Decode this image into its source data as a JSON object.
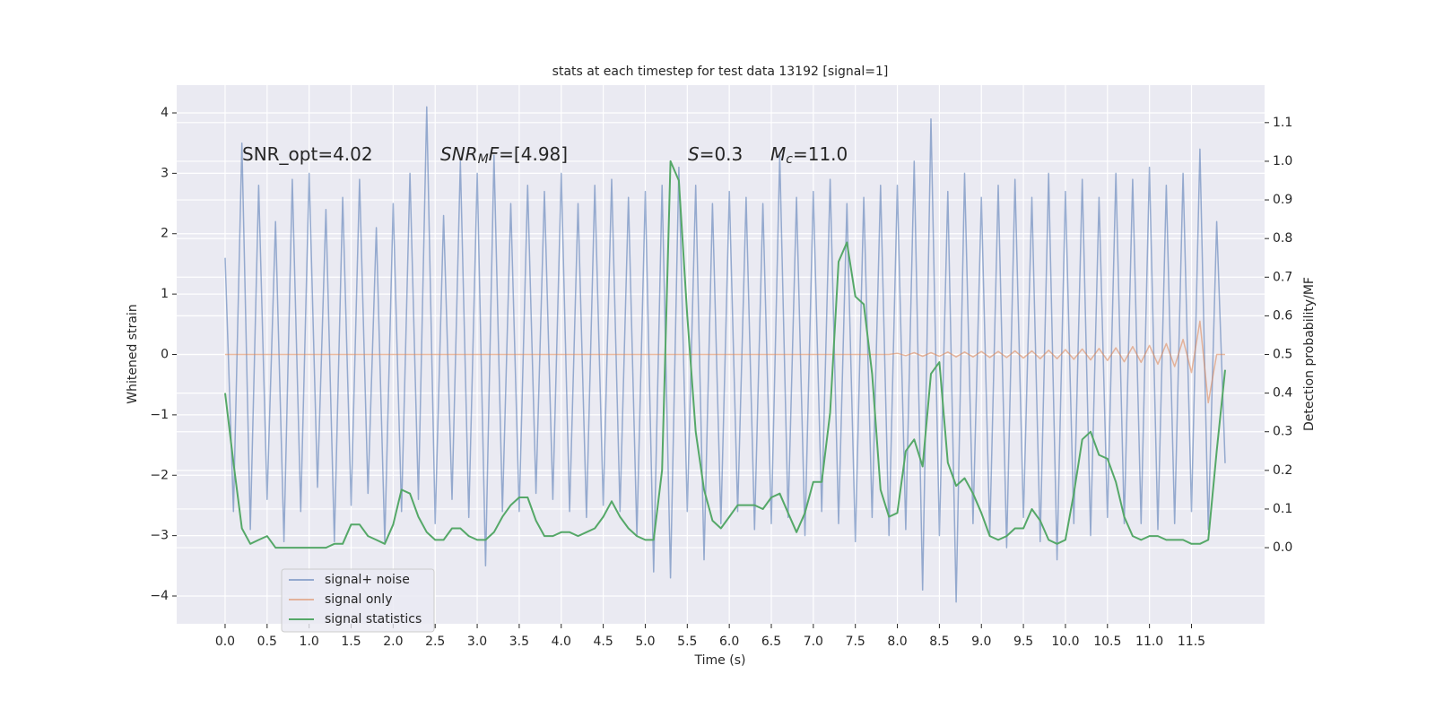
{
  "chart_data": {
    "type": "line",
    "title": "stats at each timestep for test data 13192 [signal=1]",
    "xlabel": "Time (s)",
    "ylabel": "Whitened strain",
    "y2label": "Detection probability/MF",
    "grid": true,
    "legend": "lower left",
    "xlim": [
      -0.576,
      12.37
    ],
    "ylim": [
      -4.46,
      4.46
    ],
    "y2lim": [
      -0.197,
      1.197
    ],
    "xticks": [
      {
        "value": 0,
        "label": "0.0"
      },
      0.5,
      {
        "value": 1,
        "label": "1.0"
      },
      1.5,
      {
        "value": 2,
        "label": "2.0"
      },
      2.5,
      {
        "value": 3,
        "label": "3.0"
      },
      3.5,
      {
        "value": 4,
        "label": "4.0"
      },
      4.5,
      {
        "value": 5,
        "label": "5.0"
      },
      5.5,
      {
        "value": 6,
        "label": "6.0"
      },
      6.5,
      {
        "value": 7,
        "label": "7.0"
      },
      7.5,
      {
        "value": 8,
        "label": "8.0"
      },
      8.5,
      {
        "value": 9,
        "label": "9.0"
      },
      9.5,
      {
        "value": 10,
        "label": "10.0"
      },
      10.5,
      {
        "value": 11,
        "label": "11.0"
      },
      11.5
    ],
    "yticks": [
      {
        "value": -4,
        "label": "−4"
      },
      {
        "value": -3,
        "label": "−3"
      },
      {
        "value": -2,
        "label": "−2"
      },
      {
        "value": -1,
        "label": "−1"
      },
      0,
      1,
      2,
      3,
      4
    ],
    "y2ticks": [
      {
        "value": 0,
        "label": "0.0"
      },
      0.1,
      0.2,
      0.3,
      0.4,
      0.5,
      0.6,
      0.7,
      0.8,
      0.9,
      {
        "value": 1,
        "label": "1.0"
      },
      1.1
    ],
    "annotations": [
      [
        {
          "text": "SNR_opt=4.02",
          "style": "normal"
        }
      ],
      [
        {
          "text": "SNR",
          "style": "italic"
        },
        {
          "text": "M",
          "style": "sub"
        },
        {
          "text": "F",
          "style": "italic"
        },
        {
          "text": "=[4.98]",
          "style": "normal"
        }
      ],
      [
        {
          "text": "S",
          "style": "italic"
        },
        {
          "text": "=0.3",
          "style": "normal"
        }
      ],
      [
        {
          "text": "M",
          "style": "italic"
        },
        {
          "text": "c",
          "style": "sub"
        },
        {
          "text": "=11.0",
          "style": "normal"
        }
      ]
    ],
    "x": [
      0.0,
      0.1,
      0.2,
      0.3,
      0.4,
      0.5,
      0.6,
      0.7,
      0.8,
      0.9,
      1.0,
      1.1,
      1.2,
      1.3,
      1.4,
      1.5,
      1.6,
      1.7,
      1.8,
      1.9,
      2.0,
      2.1,
      2.2,
      2.3,
      2.4,
      2.5,
      2.6,
      2.7,
      2.8,
      2.9,
      3.0,
      3.1,
      3.2,
      3.3,
      3.4,
      3.5,
      3.6,
      3.7,
      3.8,
      3.9,
      4.0,
      4.1,
      4.2,
      4.3,
      4.4,
      4.5,
      4.6,
      4.7,
      4.8,
      4.9,
      5.0,
      5.1,
      5.2,
      5.3,
      5.4,
      5.5,
      5.6,
      5.7,
      5.8,
      5.9,
      6.0,
      6.1,
      6.2,
      6.3,
      6.4,
      6.5,
      6.6,
      6.7,
      6.8,
      6.9,
      7.0,
      7.1,
      7.2,
      7.3,
      7.4,
      7.5,
      7.6,
      7.7,
      7.8,
      7.9,
      8.0,
      8.1,
      8.2,
      8.3,
      8.4,
      8.5,
      8.6,
      8.7,
      8.8,
      8.9,
      9.0,
      9.1,
      9.2,
      9.3,
      9.4,
      9.5,
      9.6,
      9.7,
      9.8,
      9.9,
      10.0,
      10.1,
      10.2,
      10.3,
      10.4,
      10.5,
      10.6,
      10.7,
      10.8,
      10.9,
      11.0,
      11.1,
      11.2,
      11.3,
      11.4,
      11.5,
      11.6,
      11.7,
      11.8,
      11.9
    ],
    "series": [
      {
        "name": "signal+ noise",
        "color": "#4c72b0",
        "values": [
          1.6,
          -2.6,
          3.5,
          -2.9,
          2.8,
          -2.4,
          2.2,
          -3.1,
          2.9,
          -2.6,
          3.0,
          -2.2,
          2.4,
          -3.1,
          2.6,
          -2.5,
          2.9,
          -2.3,
          2.1,
          -3.1,
          2.5,
          -2.6,
          3.0,
          -2.4,
          4.1,
          -2.8,
          2.3,
          -2.4,
          3.2,
          -2.7,
          3.0,
          -3.5,
          3.3,
          -2.6,
          2.5,
          -2.6,
          2.8,
          -2.3,
          2.7,
          -2.4,
          3.0,
          -2.6,
          2.5,
          -2.7,
          2.8,
          -2.5,
          2.9,
          -2.6,
          2.6,
          -3.0,
          2.7,
          -3.6,
          2.8,
          -3.7,
          3.1,
          -2.6,
          2.8,
          -3.4,
          2.5,
          -2.8,
          2.7,
          -2.6,
          2.6,
          -2.9,
          2.5,
          -2.8,
          3.3,
          -2.7,
          2.6,
          -3.0,
          2.7,
          -2.6,
          2.9,
          -2.8,
          2.5,
          -3.1,
          2.6,
          -2.7,
          2.8,
          -3.0,
          2.8,
          -2.9,
          3.2,
          -3.9,
          3.9,
          -3.0,
          2.7,
          -4.1,
          3.0,
          -2.8,
          2.6,
          -3.0,
          2.8,
          -3.2,
          2.9,
          -2.7,
          2.6,
          -3.1,
          3.0,
          -3.4,
          2.7,
          -2.8,
          2.9,
          -3.0,
          2.6,
          -2.7,
          3.0,
          -2.8,
          2.9,
          -2.8,
          3.1,
          -2.9,
          2.8,
          -2.8,
          3.0,
          -2.6,
          3.4,
          -2.9,
          2.2,
          -1.8
        ]
      },
      {
        "name": "signal only",
        "color": "#dd8452",
        "values": [
          0,
          0,
          0,
          0,
          0,
          0,
          0,
          0,
          0,
          0,
          0,
          0,
          0,
          0,
          0,
          0,
          0,
          0,
          0,
          0,
          0,
          0,
          0,
          0,
          0,
          0,
          0,
          0,
          0,
          0,
          0,
          0,
          0,
          0,
          0,
          0,
          0,
          0,
          0,
          0,
          0,
          0,
          0,
          0,
          0,
          0,
          0,
          0,
          0,
          0,
          0,
          0,
          0,
          0,
          0,
          0,
          0,
          0,
          0,
          0,
          0,
          0,
          0,
          0,
          0,
          0,
          0,
          0,
          0,
          0,
          0,
          0,
          0,
          0,
          0,
          0,
          0,
          0,
          0,
          0,
          0.02,
          -0.02,
          0.03,
          -0.03,
          0.03,
          -0.03,
          0.04,
          -0.04,
          0.04,
          -0.04,
          0.05,
          -0.05,
          0.05,
          -0.05,
          0.06,
          -0.06,
          0.06,
          -0.07,
          0.07,
          -0.07,
          0.08,
          -0.08,
          0.09,
          -0.09,
          0.1,
          -0.1,
          0.11,
          -0.12,
          0.13,
          -0.13,
          0.15,
          -0.16,
          0.18,
          -0.2,
          0.25,
          -0.3,
          0.55,
          -0.8,
          0,
          0
        ]
      },
      {
        "name": "signal statistics",
        "color": "#55a868",
        "axis": "y2",
        "values": [
          0.4,
          0.22,
          0.05,
          0.01,
          0.02,
          0.03,
          0.0,
          0.0,
          0.0,
          0.0,
          0.0,
          0.0,
          0.0,
          0.01,
          0.01,
          0.06,
          0.06,
          0.03,
          0.02,
          0.01,
          0.06,
          0.15,
          0.14,
          0.08,
          0.04,
          0.02,
          0.02,
          0.05,
          0.05,
          0.03,
          0.02,
          0.02,
          0.04,
          0.08,
          0.11,
          0.13,
          0.13,
          0.07,
          0.03,
          0.03,
          0.04,
          0.04,
          0.03,
          0.04,
          0.05,
          0.08,
          0.12,
          0.08,
          0.05,
          0.03,
          0.02,
          0.02,
          0.2,
          1.0,
          0.95,
          0.6,
          0.3,
          0.15,
          0.07,
          0.05,
          0.08,
          0.11,
          0.11,
          0.11,
          0.1,
          0.13,
          0.14,
          0.09,
          0.04,
          0.09,
          0.17,
          0.17,
          0.35,
          0.74,
          0.79,
          0.65,
          0.63,
          0.45,
          0.15,
          0.08,
          0.09,
          0.25,
          0.28,
          0.21,
          0.45,
          0.48,
          0.22,
          0.16,
          0.18,
          0.14,
          0.09,
          0.03,
          0.02,
          0.03,
          0.05,
          0.05,
          0.1,
          0.07,
          0.02,
          0.01,
          0.02,
          0.14,
          0.28,
          0.3,
          0.24,
          0.23,
          0.17,
          0.08,
          0.03,
          0.02,
          0.03,
          0.03,
          0.02,
          0.02,
          0.02,
          0.01,
          0.01,
          0.02,
          0.25,
          0.46
        ]
      }
    ]
  }
}
